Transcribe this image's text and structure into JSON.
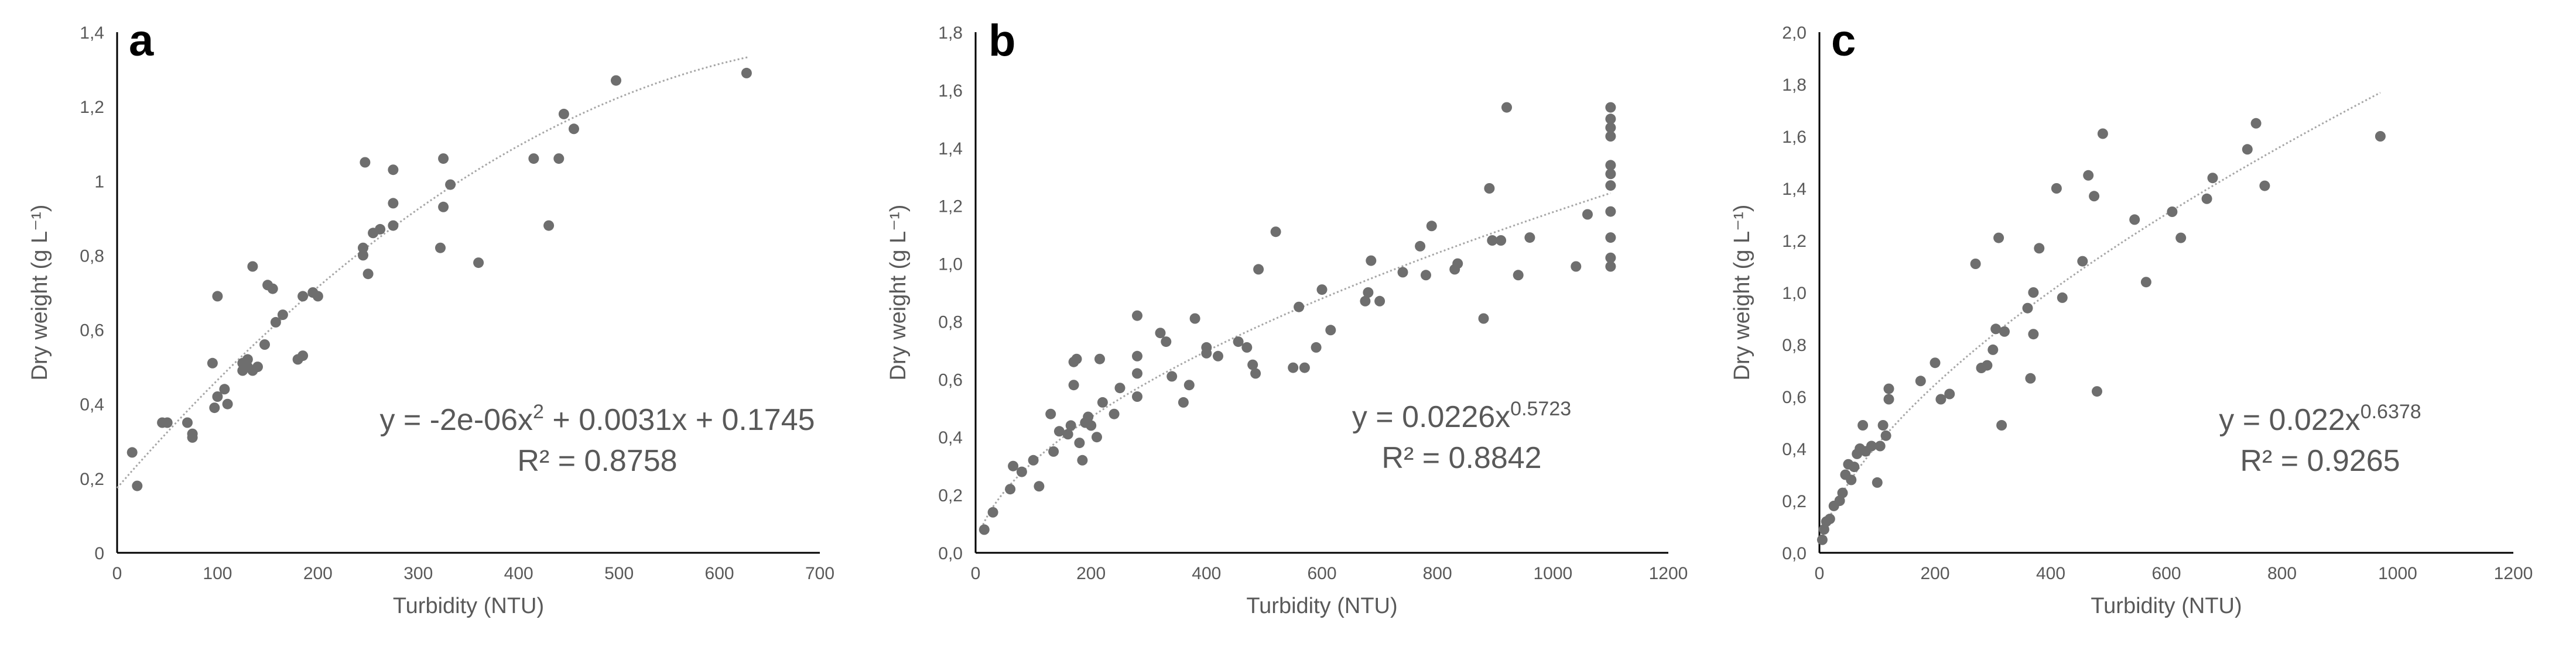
{
  "chart_data": [
    {
      "type": "scatter",
      "panel_label": "a",
      "xlabel": "Turbidity (NTU)",
      "ylabel": "Dry weight (g L⁻¹)",
      "xlim": [
        0,
        700
      ],
      "ylim": [
        0,
        1.4
      ],
      "xticks": [
        "0",
        "100",
        "200",
        "300",
        "400",
        "500",
        "600",
        "700"
      ],
      "yticks": [
        "0",
        "0,2",
        "0,4",
        "0,6",
        "0,8",
        "1",
        "1,2",
        "1,4"
      ],
      "points_color": "#6e6e6e",
      "trendline": {
        "kind": "polynomial",
        "coeffs": [
          0.1745,
          0.0031,
          -2e-06
        ],
        "xrange": [
          0,
          630
        ],
        "equation_main": "y = -2e-06x",
        "equation_sup": "2",
        "equation_rest": " + 0.0031x + 0.1745",
        "r2": "R² = 0.8758"
      },
      "points": [
        [
          15,
          0.27
        ],
        [
          20,
          0.18
        ],
        [
          45,
          0.35
        ],
        [
          50,
          0.35
        ],
        [
          70,
          0.35
        ],
        [
          75,
          0.31
        ],
        [
          75,
          0.32
        ],
        [
          95,
          0.51
        ],
        [
          97,
          0.39
        ],
        [
          100,
          0.42
        ],
        [
          100,
          0.69
        ],
        [
          107,
          0.44
        ],
        [
          110,
          0.4
        ],
        [
          125,
          0.49
        ],
        [
          125,
          0.51
        ],
        [
          130,
          0.5
        ],
        [
          130,
          0.52
        ],
        [
          135,
          0.49
        ],
        [
          135,
          0.77
        ],
        [
          140,
          0.5
        ],
        [
          147,
          0.56
        ],
        [
          150,
          0.72
        ],
        [
          155,
          0.71
        ],
        [
          158,
          0.62
        ],
        [
          165,
          0.64
        ],
        [
          180,
          0.52
        ],
        [
          185,
          0.53
        ],
        [
          185,
          0.69
        ],
        [
          195,
          0.7
        ],
        [
          200,
          0.69
        ],
        [
          245,
          0.8
        ],
        [
          245,
          0.82
        ],
        [
          247,
          1.05
        ],
        [
          250,
          0.75
        ],
        [
          255,
          0.86
        ],
        [
          262,
          0.87
        ],
        [
          275,
          0.88
        ],
        [
          275,
          0.94
        ],
        [
          275,
          1.03
        ],
        [
          322,
          0.82
        ],
        [
          325,
          0.93
        ],
        [
          325,
          1.06
        ],
        [
          332,
          0.99
        ],
        [
          360,
          0.78
        ],
        [
          415,
          1.06
        ],
        [
          430,
          0.88
        ],
        [
          440,
          1.06
        ],
        [
          445,
          1.18
        ],
        [
          455,
          1.14
        ],
        [
          497,
          1.27
        ],
        [
          627,
          1.29
        ]
      ]
    },
    {
      "type": "scatter",
      "panel_label": "b",
      "xlabel": "Turbidity (NTU)",
      "ylabel": "Dry weight (g L⁻¹)",
      "xlim": [
        0,
        1200
      ],
      "ylim": [
        0,
        1.8
      ],
      "xticks": [
        "0",
        "200",
        "400",
        "600",
        "800",
        "1000",
        "1200"
      ],
      "yticks": [
        "0,0",
        "0,2",
        "0,4",
        "0,6",
        "0,8",
        "1,0",
        "1,2",
        "1,4",
        "1,6",
        "1,8"
      ],
      "points_color": "#6e6e6e",
      "trendline": {
        "kind": "power",
        "a": 0.0226,
        "b": 0.5723,
        "xrange": [
          10,
          1100
        ],
        "equation_main": "y = 0.0226x",
        "equation_sup": "0.5723",
        "equation_rest": "",
        "r2": "R² = 0.8842"
      },
      "points": [
        [
          15,
          0.08
        ],
        [
          30,
          0.14
        ],
        [
          60,
          0.22
        ],
        [
          65,
          0.3
        ],
        [
          80,
          0.28
        ],
        [
          100,
          0.32
        ],
        [
          110,
          0.23
        ],
        [
          130,
          0.48
        ],
        [
          135,
          0.35
        ],
        [
          145,
          0.42
        ],
        [
          160,
          0.41
        ],
        [
          165,
          0.44
        ],
        [
          170,
          0.58
        ],
        [
          170,
          0.66
        ],
        [
          175,
          0.67
        ],
        [
          180,
          0.38
        ],
        [
          185,
          0.32
        ],
        [
          190,
          0.45
        ],
        [
          195,
          0.47
        ],
        [
          200,
          0.44
        ],
        [
          210,
          0.4
        ],
        [
          215,
          0.67
        ],
        [
          220,
          0.52
        ],
        [
          240,
          0.48
        ],
        [
          250,
          0.57
        ],
        [
          280,
          0.54
        ],
        [
          280,
          0.62
        ],
        [
          280,
          0.82
        ],
        [
          280,
          0.68
        ],
        [
          320,
          0.76
        ],
        [
          330,
          0.73
        ],
        [
          340,
          0.61
        ],
        [
          360,
          0.52
        ],
        [
          370,
          0.58
        ],
        [
          380,
          0.81
        ],
        [
          400,
          0.69
        ],
        [
          400,
          0.71
        ],
        [
          420,
          0.68
        ],
        [
          455,
          0.73
        ],
        [
          470,
          0.71
        ],
        [
          480,
          0.65
        ],
        [
          485,
          0.62
        ],
        [
          490,
          0.98
        ],
        [
          520,
          1.11
        ],
        [
          550,
          0.64
        ],
        [
          560,
          0.85
        ],
        [
          570,
          0.64
        ],
        [
          590,
          0.71
        ],
        [
          600,
          0.91
        ],
        [
          615,
          0.77
        ],
        [
          675,
          0.87
        ],
        [
          680,
          0.9
        ],
        [
          685,
          1.01
        ],
        [
          700,
          0.87
        ],
        [
          740,
          0.97
        ],
        [
          770,
          1.06
        ],
        [
          780,
          0.96
        ],
        [
          790,
          1.13
        ],
        [
          830,
          0.98
        ],
        [
          835,
          1.0
        ],
        [
          880,
          0.81
        ],
        [
          890,
          1.26
        ],
        [
          895,
          1.08
        ],
        [
          910,
          1.08
        ],
        [
          920,
          1.54
        ],
        [
          940,
          0.96
        ],
        [
          960,
          1.09
        ],
        [
          1040,
          0.99
        ],
        [
          1060,
          1.17
        ],
        [
          1100,
          0.99
        ],
        [
          1100,
          1.02
        ],
        [
          1100,
          1.09
        ],
        [
          1100,
          1.18
        ],
        [
          1100,
          1.27
        ],
        [
          1100,
          1.31
        ],
        [
          1100,
          1.34
        ],
        [
          1100,
          1.44
        ],
        [
          1100,
          1.47
        ],
        [
          1100,
          1.5
        ],
        [
          1100,
          1.54
        ]
      ]
    },
    {
      "type": "scatter",
      "panel_label": "c",
      "xlabel": "Turbidity (NTU)",
      "ylabel": "Dry weight (g L⁻¹)",
      "xlim": [
        0,
        1200
      ],
      "ylim": [
        0,
        2.0
      ],
      "xticks": [
        "0",
        "200",
        "400",
        "600",
        "800",
        "1000",
        "1200"
      ],
      "yticks": [
        "0,0",
        "0,2",
        "0,4",
        "0,6",
        "0,8",
        "1,0",
        "1,2",
        "1,4",
        "1,6",
        "1,8",
        "2,0"
      ],
      "points_color": "#6e6e6e",
      "trendline": {
        "kind": "power",
        "a": 0.022,
        "b": 0.6378,
        "xrange": [
          3,
          970
        ],
        "equation_main": "y = 0.022x",
        "equation_sup": "0.6378",
        "equation_rest": "",
        "r2": "R² = 0.9265"
      },
      "points": [
        [
          5,
          0.05
        ],
        [
          8,
          0.09
        ],
        [
          12,
          0.12
        ],
        [
          18,
          0.13
        ],
        [
          25,
          0.18
        ],
        [
          35,
          0.2
        ],
        [
          40,
          0.23
        ],
        [
          45,
          0.3
        ],
        [
          50,
          0.34
        ],
        [
          55,
          0.28
        ],
        [
          60,
          0.33
        ],
        [
          65,
          0.38
        ],
        [
          70,
          0.4
        ],
        [
          75,
          0.49
        ],
        [
          80,
          0.39
        ],
        [
          90,
          0.41
        ],
        [
          100,
          0.27
        ],
        [
          105,
          0.41
        ],
        [
          110,
          0.49
        ],
        [
          115,
          0.45
        ],
        [
          120,
          0.59
        ],
        [
          120,
          0.63
        ],
        [
          175,
          0.66
        ],
        [
          200,
          0.73
        ],
        [
          210,
          0.59
        ],
        [
          225,
          0.61
        ],
        [
          270,
          1.11
        ],
        [
          280,
          0.71
        ],
        [
          290,
          0.72
        ],
        [
          300,
          0.78
        ],
        [
          305,
          0.86
        ],
        [
          310,
          1.21
        ],
        [
          315,
          0.49
        ],
        [
          320,
          0.85
        ],
        [
          360,
          0.94
        ],
        [
          365,
          0.67
        ],
        [
          370,
          0.84
        ],
        [
          370,
          1.0
        ],
        [
          380,
          1.17
        ],
        [
          410,
          1.4
        ],
        [
          420,
          0.98
        ],
        [
          455,
          1.12
        ],
        [
          465,
          1.45
        ],
        [
          475,
          1.37
        ],
        [
          480,
          0.62
        ],
        [
          490,
          1.61
        ],
        [
          545,
          1.28
        ],
        [
          565,
          1.04
        ],
        [
          610,
          1.31
        ],
        [
          625,
          1.21
        ],
        [
          670,
          1.36
        ],
        [
          680,
          1.44
        ],
        [
          740,
          1.55
        ],
        [
          755,
          1.65
        ],
        [
          770,
          1.41
        ],
        [
          970,
          1.6
        ]
      ]
    }
  ]
}
